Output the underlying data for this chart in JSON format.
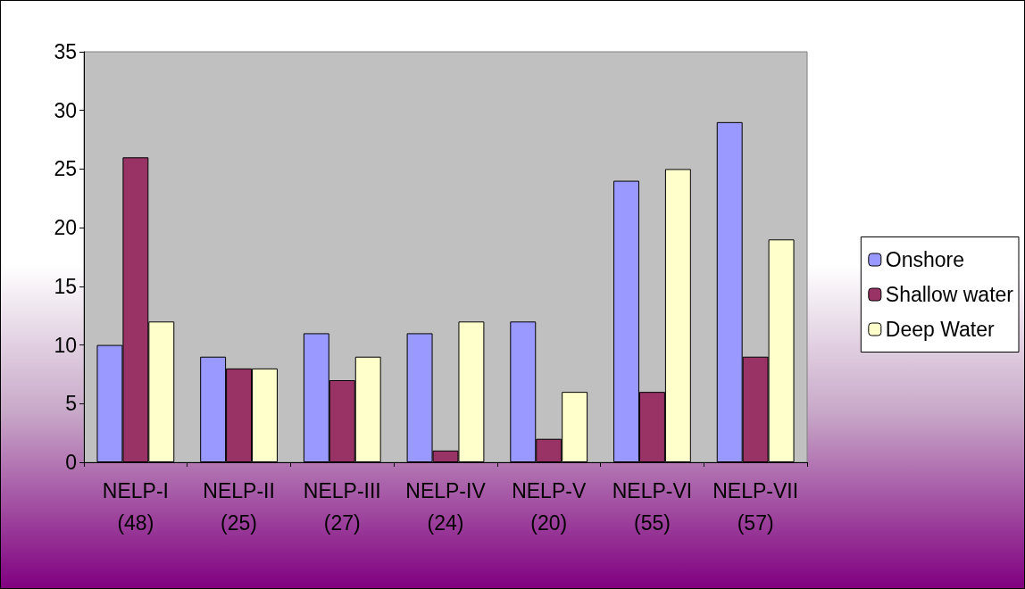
{
  "chart_data": {
    "type": "bar",
    "categories": [
      "NELP-I (48)",
      "NELP-II (25)",
      "NELP-III (27)",
      "NELP-IV (24)",
      "NELP-V (20)",
      "NELP-VI (55)",
      "NELP-VII (57)"
    ],
    "series": [
      {
        "name": "Onshore",
        "color": "#9999ff",
        "values": [
          10,
          9,
          11,
          11,
          12,
          24,
          29
        ]
      },
      {
        "name": "Shallow water",
        "color": "#993366",
        "values": [
          26,
          8,
          7,
          1,
          2,
          6,
          9
        ]
      },
      {
        "name": "Deep Water",
        "color": "#ffffcc",
        "values": [
          12,
          8,
          9,
          12,
          6,
          25,
          19
        ]
      }
    ],
    "ylim": [
      0,
      35
    ],
    "yticks": [
      0,
      5,
      10,
      15,
      20,
      25,
      30,
      35
    ],
    "legend": "right"
  }
}
